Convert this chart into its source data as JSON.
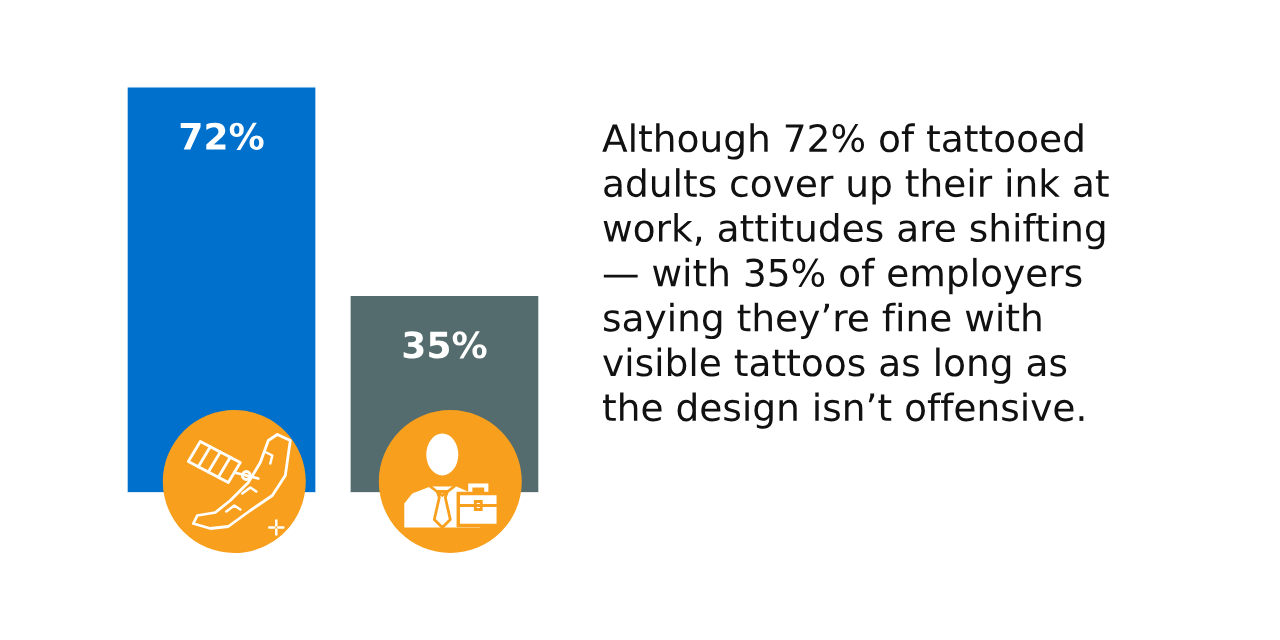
{
  "chart_data": {
    "type": "bar",
    "categories": [
      null,
      null
    ],
    "values": [
      72,
      35
    ],
    "colors": [
      "#0070cd",
      "#546c6e"
    ],
    "value_labels": [
      "72%",
      "35%"
    ],
    "tick_labels": false,
    "annotations": [
      "Although 72% of tattooed adults cover up their ink at work, attitudes are shifting — with 35% of employers saying they’re fine with visible tattoos as long as the design isn’t offensive."
    ]
  }
}
